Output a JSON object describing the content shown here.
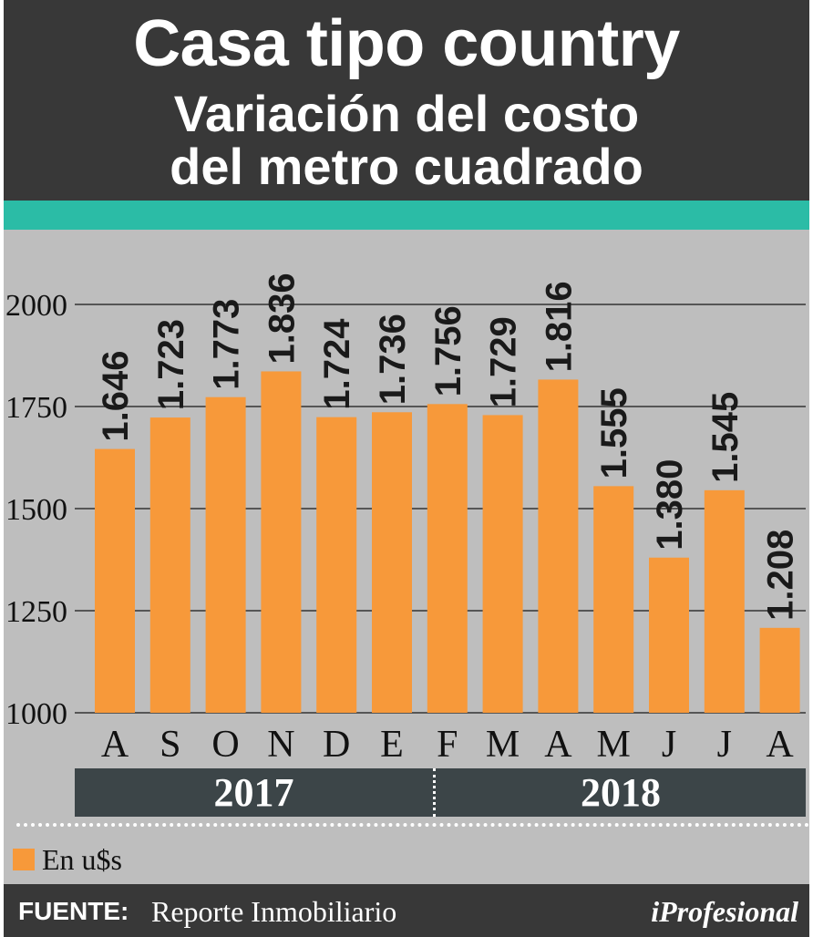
{
  "header": {
    "title": "Casa tipo country",
    "subtitle_line1": "Variación del costo",
    "subtitle_line2": "del metro cuadrado"
  },
  "years": [
    "2017",
    "2018"
  ],
  "legend": {
    "label": "En u$s",
    "color": "#f7993a"
  },
  "footer": {
    "source_label": "FUENTE:",
    "source_text": "Reporte Inmobiliario",
    "brand": "iProfesional"
  },
  "colors": {
    "bar": "#f7993a",
    "background": "#bebebe",
    "header": "#383838",
    "accent": "#2bbca6"
  },
  "chart_data": {
    "type": "bar",
    "categories": [
      "A",
      "S",
      "O",
      "N",
      "D",
      "E",
      "F",
      "M",
      "A",
      "M",
      "J",
      "J",
      "A"
    ],
    "values": [
      1646,
      1723,
      1773,
      1836,
      1724,
      1736,
      1756,
      1729,
      1816,
      1555,
      1380,
      1545,
      1208
    ],
    "data_labels": [
      "1.646",
      "1.723",
      "1.773",
      "1.836",
      "1.724",
      "1.736",
      "1.756",
      "1.729",
      "1.816",
      "1.555",
      "1.380",
      "1.545",
      "1.208"
    ],
    "ylim": [
      1000,
      2000
    ],
    "yticks": [
      "1000",
      "1250",
      "1500",
      "1750",
      "2000"
    ],
    "grid": true,
    "legend_position": "bottom-left"
  }
}
